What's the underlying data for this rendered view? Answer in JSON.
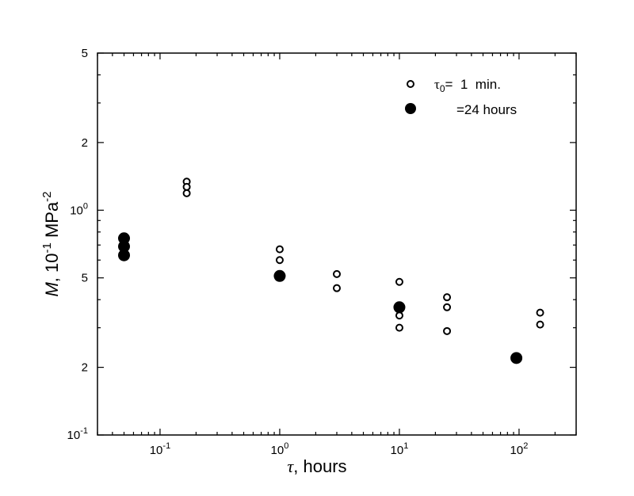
{
  "chart_data": {
    "type": "scatter",
    "x_scale": "log",
    "y_scale": "log",
    "xlim": [
      0.03,
      300
    ],
    "ylim": [
      0.1,
      5
    ],
    "grid": false,
    "legend_placement": "top-right",
    "xlabel": {
      "symbol": "τ",
      "text": ", hours"
    },
    "ylabel": {
      "symbol": "M",
      "text": ", 10",
      "exp1": "-1",
      "unit": " MPa",
      "exp2": "-2"
    },
    "x_ticks": [
      {
        "value": 0.1,
        "base": "10",
        "exp": "-1"
      },
      {
        "value": 1,
        "base": "10",
        "exp": "0"
      },
      {
        "value": 10,
        "base": "10",
        "exp": "1"
      },
      {
        "value": 100,
        "base": "10",
        "exp": "2"
      }
    ],
    "y_ticks": [
      {
        "value": 0.1,
        "base": "10",
        "exp": "-1"
      },
      {
        "value": 0.2,
        "label": "2"
      },
      {
        "value": 0.5,
        "label": "5"
      },
      {
        "value": 1,
        "base": "10",
        "exp": "0"
      },
      {
        "value": 2,
        "label": "2"
      },
      {
        "value": 5,
        "label": "5"
      }
    ],
    "series": [
      {
        "name": "τ0= 1 min.",
        "name_parts": {
          "tau": "τ",
          "sub": "0",
          "rest": "=  1  min."
        },
        "marker": "open-circle",
        "points": [
          [
            0.167,
            1.34
          ],
          [
            0.167,
            1.27
          ],
          [
            0.167,
            1.19
          ],
          [
            1,
            0.67
          ],
          [
            1,
            0.6
          ],
          [
            3,
            0.52
          ],
          [
            3,
            0.45
          ],
          [
            10,
            0.48
          ],
          [
            10,
            0.34
          ],
          [
            10,
            0.3
          ],
          [
            25,
            0.41
          ],
          [
            25,
            0.37
          ],
          [
            25,
            0.29
          ],
          [
            150,
            0.35
          ],
          [
            150,
            0.31
          ]
        ]
      },
      {
        "name": "=24 hours",
        "marker": "filled-circle",
        "points": [
          [
            0.05,
            0.75
          ],
          [
            0.05,
            0.69
          ],
          [
            0.05,
            0.63
          ],
          [
            1,
            0.51
          ],
          [
            10,
            0.37
          ],
          [
            95,
            0.22
          ]
        ]
      }
    ]
  }
}
